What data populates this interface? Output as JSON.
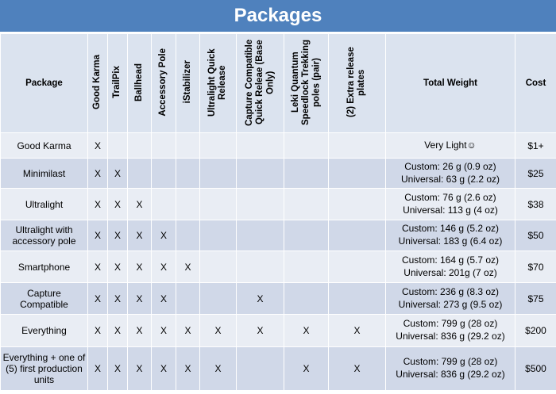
{
  "title": "Packages",
  "table": {
    "header": [
      "Package",
      "Good Karma",
      "TrailPix",
      "Ballhead",
      "Accessory Pole",
      "iStabilizer",
      "Ultralight Quick Release",
      "Capture Compatible Quick Releae (Base Only)",
      "Leki Quantum Speedlock Trekking poles (pair)",
      "(2) Extra release plates",
      "Total Weight",
      "Cost"
    ],
    "rows": [
      {
        "package": "Good Karma",
        "marks": [
          "X",
          null,
          null,
          null,
          null,
          null,
          null,
          null,
          null
        ],
        "weight": [
          "Very Light☺"
        ],
        "cost": "$1+"
      },
      {
        "package": "Minimilast",
        "marks": [
          "X",
          "X",
          null,
          null,
          null,
          null,
          null,
          null,
          null
        ],
        "weight": [
          "Custom: 26 g (0.9 oz)",
          "Universal: 63 g (2.2 oz)"
        ],
        "cost": "$25"
      },
      {
        "package": "Ultralight",
        "marks": [
          "X",
          "X",
          "X",
          null,
          null,
          null,
          null,
          null,
          null
        ],
        "weight": [
          "Custom: 76 g (2.6 oz)",
          "Universal: 113 g (4 oz)"
        ],
        "cost": "$38"
      },
      {
        "package": "Ultralight with accessory pole",
        "marks": [
          "X",
          "X",
          "X",
          "X",
          null,
          null,
          null,
          null,
          null
        ],
        "weight": [
          "Custom: 146 g (5.2 oz)",
          "Universal: 183 g (6.4 oz)"
        ],
        "cost": "$50"
      },
      {
        "package": "Smartphone",
        "marks": [
          "X",
          "X",
          "X",
          "X",
          "X",
          null,
          null,
          null,
          null
        ],
        "weight": [
          "Custom: 164 g (5.7 oz)",
          "Universal: 201g  (7 oz)"
        ],
        "cost": "$70"
      },
      {
        "package": "Capture Compatible",
        "marks": [
          "X",
          "X",
          "X",
          "X",
          null,
          null,
          "X",
          null,
          null
        ],
        "weight": [
          "Custom: 236 g (8.3 oz)",
          "Universal: 273 g (9.5 oz)"
        ],
        "cost": "$75"
      },
      {
        "package": "Everything",
        "marks": [
          "X",
          "X",
          "X",
          "X",
          "X",
          "X",
          "X",
          "X",
          "X"
        ],
        "weight": [
          "Custom: 799 g (28 oz)",
          "Universal: 836 g (29.2 oz)"
        ],
        "cost": "$200"
      },
      {
        "package": "Everything + one of (5) first production units",
        "marks": [
          "X",
          "X",
          "X",
          "X",
          "X",
          "X",
          null,
          "X",
          "X"
        ],
        "weight": [
          "Custom: 799 g (28 oz)",
          "Universal: 836 g (29.2 oz)"
        ],
        "cost": "$500"
      }
    ]
  }
}
